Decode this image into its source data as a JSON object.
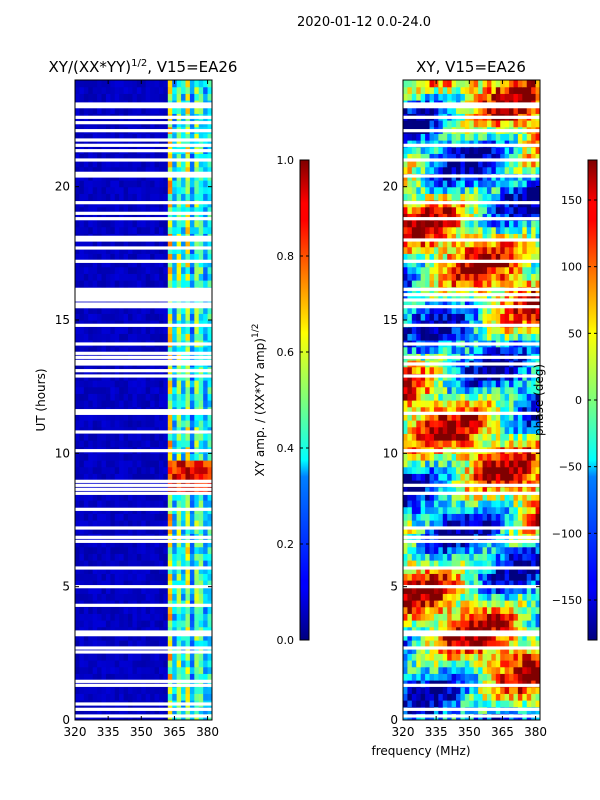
{
  "figure": {
    "suptitle": "2020-01-12 0.0-24.0",
    "shared_xlabel": "frequency (MHz)"
  },
  "chart_data": [
    {
      "type": "heatmap",
      "title": "XY/(XX*YY)^{1/2}, V15=EA26",
      "title_main": "XY/(XX*YY)",
      "title_sup": "1/2",
      "title_tail": ", V15=EA26",
      "xlabel": "frequency (MHz)",
      "ylabel": "UT (hours)",
      "xlim": [
        320,
        382
      ],
      "ylim": [
        0,
        24
      ],
      "xticks": [
        320,
        335,
        350,
        365,
        380
      ],
      "yticks": [
        0,
        5,
        10,
        15,
        20
      ],
      "colormap": "jet",
      "colorbar": {
        "label_main": "XY amp. / (XX*YY amp)",
        "label_sup": "1/2",
        "range": [
          0.0,
          1.0
        ],
        "ticks": [
          "0.0",
          "0.2",
          "0.4",
          "0.6",
          "0.8",
          "1.0"
        ],
        "tick_values": [
          0.0,
          0.2,
          0.4,
          0.6,
          0.8,
          1.0
        ]
      },
      "flagged_ut_hours": [
        0.15,
        0.4,
        0.6,
        1.3,
        1.45,
        2.55,
        2.7,
        3.2,
        3.3,
        4.3,
        5.0,
        5.7,
        6.7,
        6.85,
        7.2,
        7.9,
        8.5,
        8.65,
        8.8,
        8.95,
        10.1,
        10.8,
        11.5,
        11.6,
        12.9,
        13.1,
        13.35,
        13.45,
        13.6,
        13.75,
        14.1,
        14.8,
        15.5,
        15.6,
        15.75,
        15.85,
        15.95,
        16.05,
        16.15,
        17.2,
        17.7,
        18.0,
        18.1,
        18.8,
        19.0,
        19.4,
        20.4,
        20.5,
        21.0,
        21.35,
        21.55,
        21.75,
        22.1,
        22.4,
        22.6,
        23.0,
        23.1
      ],
      "data_summary": "Low amplitude (~0.05) below 363 MHz; amplitude 0.3-0.7 with striping between 363 and 380 MHz; peaks near 0.9 around 8.5-9.5 UT"
    },
    {
      "type": "heatmap",
      "title": "XY, V15=EA26",
      "xlabel": "frequency (MHz)",
      "ylabel": "",
      "xlim": [
        320,
        382
      ],
      "ylim": [
        0,
        24
      ],
      "xticks": [
        320,
        335,
        350,
        365,
        380
      ],
      "yticks": [
        0,
        5,
        10,
        15,
        20
      ],
      "colormap": "jet",
      "colorbar": {
        "label": "phase (deg)",
        "range": [
          -180,
          180
        ],
        "ticks": [
          "−150",
          "−100",
          "−50",
          "0",
          "50",
          "100",
          "150"
        ],
        "tick_values": [
          -150,
          -100,
          -50,
          0,
          50,
          100,
          150
        ]
      },
      "flagged_ut_hours": [
        0.15,
        0.4,
        1.3,
        2.7,
        3.2,
        3.3,
        5.0,
        5.7,
        6.7,
        6.85,
        7.2,
        8.5,
        8.8,
        10.1,
        11.5,
        12.9,
        13.35,
        13.6,
        14.1,
        14.8,
        15.5,
        15.75,
        15.95,
        16.15,
        17.2,
        18.0,
        18.8,
        19.4,
        20.4,
        21.0,
        21.55,
        22.1,
        22.6,
        23.0,
        23.1
      ],
      "data_summary": "Phase varies across the full range (-180 to 180 deg) in banded, time-coherent patches"
    }
  ]
}
